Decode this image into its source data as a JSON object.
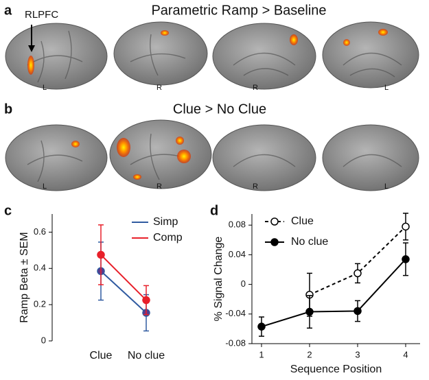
{
  "panel_labels": [
    "a",
    "b",
    "c",
    "d"
  ],
  "annotation": "RLPFC",
  "brain_panels": [
    {
      "title": "Parametric Ramp > Baseline",
      "hemisphere_labels": [
        "L",
        "R",
        "R",
        "L"
      ]
    },
    {
      "title": "Clue > No Clue",
      "hemisphere_labels": [
        "L",
        "R",
        "R",
        "L"
      ]
    }
  ],
  "chart_data": [
    {
      "type": "line",
      "categories": [
        "Clue",
        "No clue"
      ],
      "ylabel": "Ramp Beta ± SEM",
      "ylim": [
        0,
        0.7
      ],
      "yticks": [
        0,
        0.2,
        0.4,
        0.6
      ],
      "legend": "upper right",
      "series": [
        {
          "name": "Simp",
          "color": "#2f5aa0",
          "marker_color": "#5b3a8c",
          "values": [
            0.385,
            0.155
          ],
          "errors": [
            0.16,
            0.1
          ]
        },
        {
          "name": "Comp",
          "color": "#e8202a",
          "values": [
            0.475,
            0.225
          ],
          "errors": [
            0.165,
            0.08
          ]
        }
      ]
    },
    {
      "type": "line",
      "x": [
        1,
        2,
        3,
        4
      ],
      "xlabel": "Sequence Position",
      "ylabel": "% Signal Change",
      "xlim": [
        0.8,
        4.3
      ],
      "xticks": [
        1,
        2,
        3,
        4
      ],
      "ylim": [
        -0.08,
        0.095
      ],
      "yticks": [
        -0.08,
        -0.04,
        0,
        0.04,
        0.08
      ],
      "legend": "upper left",
      "series": [
        {
          "name": "Clue",
          "color": "#000000",
          "line_style": "dashed",
          "marker_fill": "open",
          "values": [
            null,
            -0.014,
            0.015,
            0.078
          ],
          "errors": [
            null,
            0.029,
            0.013,
            0.018
          ]
        },
        {
          "name": "No clue",
          "color": "#000000",
          "line_style": "solid",
          "marker_fill": "filled",
          "values": [
            -0.057,
            -0.037,
            -0.036,
            0.034
          ],
          "errors": [
            0.013,
            0.022,
            0.014,
            0.022
          ]
        }
      ]
    }
  ]
}
